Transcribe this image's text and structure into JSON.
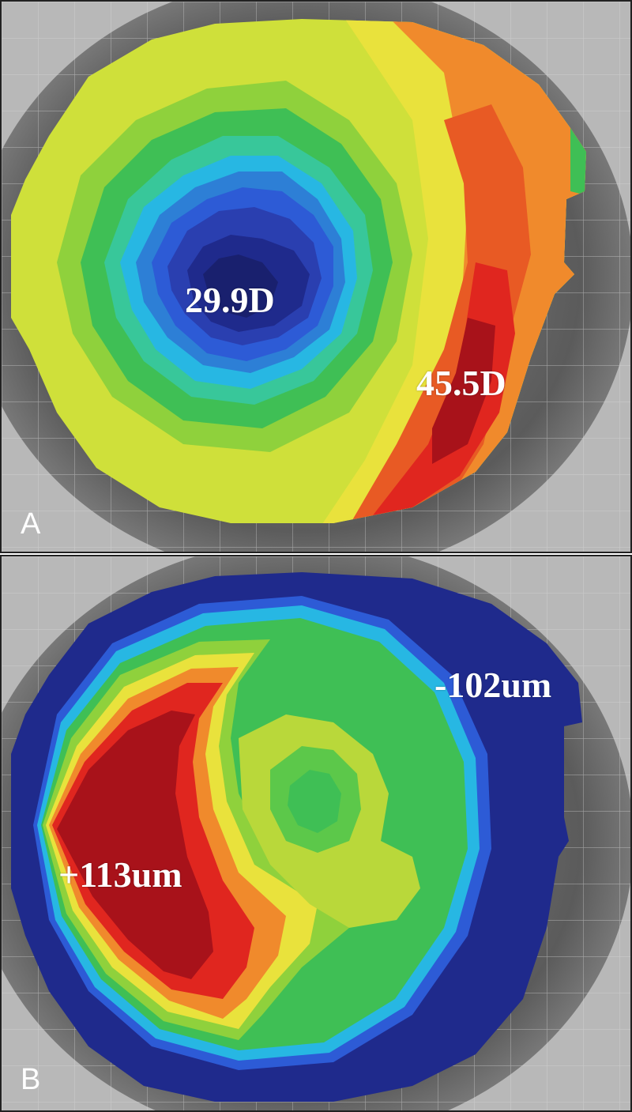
{
  "panels": [
    {
      "letter": "A",
      "labels": {
        "min": "29.9D",
        "max": "45.5D"
      }
    },
    {
      "letter": "B",
      "labels": {
        "max": "+113um",
        "min": "-102um"
      }
    }
  ],
  "colors": {
    "dark_blue": "#1f2a8c",
    "blue": "#2d5bd6",
    "cyan": "#27b7e3",
    "green": "#3fbf55",
    "yellow_green": "#b9d83a",
    "yellow": "#e9e23c",
    "orange": "#f08a2c",
    "red": "#e0261f",
    "dark_red": "#a8121a"
  }
}
